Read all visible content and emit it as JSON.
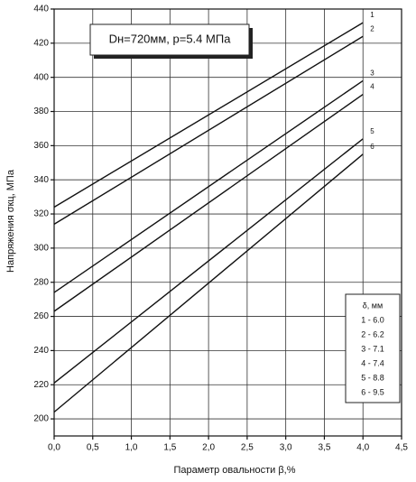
{
  "chart_data": {
    "type": "line",
    "annotation": "Dн=720мм,  p=5.4 МПа",
    "xlabel": "Параметр овальности  β,%",
    "ylabel": "Напряжения σкц, МПа",
    "legend_title": "δ, мм",
    "xlim": [
      0,
      4.5
    ],
    "ylim": [
      190,
      440
    ],
    "xticks": [
      {
        "value": 0,
        "label": "0,0"
      },
      {
        "value": 0.5,
        "label": "0,5"
      },
      {
        "value": 1,
        "label": "1,0"
      },
      {
        "value": 1.5,
        "label": "1,5"
      },
      {
        "value": 2,
        "label": "2,0"
      },
      {
        "value": 2.5,
        "label": "2,5"
      },
      {
        "value": 3,
        "label": "3,0"
      },
      {
        "value": 3.5,
        "label": "3,5"
      },
      {
        "value": 4,
        "label": "4,0"
      },
      {
        "value": 4.5,
        "label": "4,5"
      }
    ],
    "yticks": [
      200,
      220,
      240,
      260,
      280,
      300,
      320,
      340,
      360,
      380,
      400,
      420,
      440
    ],
    "grid": true,
    "series": [
      {
        "name": "1",
        "legend_label": "1 - 6.0",
        "color": "#111111",
        "x": [
          0,
          4
        ],
        "values": [
          324,
          432
        ]
      },
      {
        "name": "2",
        "legend_label": "2 - 6.2",
        "color": "#111111",
        "x": [
          0,
          4
        ],
        "values": [
          314,
          424
        ]
      },
      {
        "name": "3",
        "legend_label": "3 - 7.1",
        "color": "#111111",
        "x": [
          0,
          4
        ],
        "values": [
          274,
          398
        ]
      },
      {
        "name": "4",
        "legend_label": "4 - 7.4",
        "color": "#111111",
        "x": [
          0,
          4
        ],
        "values": [
          263,
          390
        ]
      },
      {
        "name": "5",
        "legend_label": "5 - 8.8",
        "color": "#111111",
        "x": [
          0,
          4
        ],
        "values": [
          221,
          364
        ]
      },
      {
        "name": "6",
        "legend_label": "6 - 9.5",
        "color": "#111111",
        "x": [
          0,
          4
        ],
        "values": [
          204,
          355
        ]
      }
    ]
  }
}
